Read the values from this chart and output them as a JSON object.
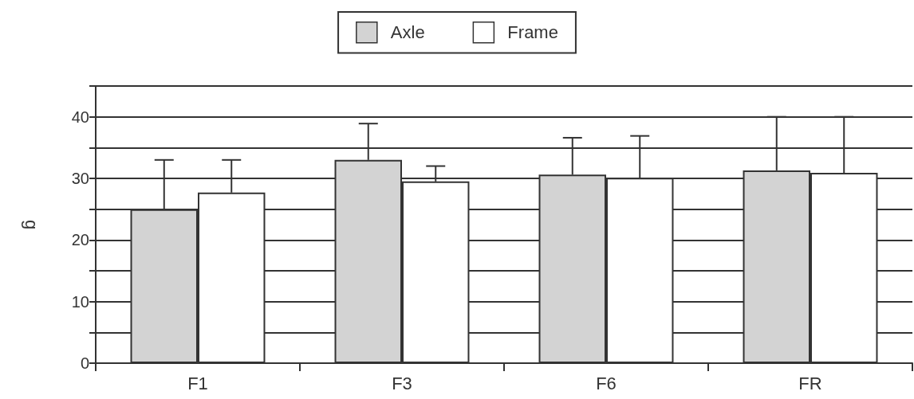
{
  "chart_data": {
    "type": "bar",
    "ylabel": "g",
    "categories": [
      "F1",
      "F3",
      "F6",
      "FR"
    ],
    "series": [
      {
        "name": "Axle",
        "color": "#d3d3d3",
        "values": [
          25,
          33,
          30.6,
          31.3
        ],
        "errors": [
          [
            25,
            33
          ],
          [
            33,
            38.9
          ],
          [
            30.6,
            36.6
          ],
          [
            31.3,
            40
          ]
        ]
      },
      {
        "name": "Frame",
        "color": "#ffffff",
        "values": [
          27.7,
          29.5,
          30.1,
          30.9
        ],
        "errors": [
          [
            27.7,
            33
          ],
          [
            29.5,
            32
          ],
          [
            30.1,
            36.9
          ],
          [
            30.9,
            40
          ]
        ]
      }
    ],
    "ylim": [
      0,
      45
    ],
    "yticks": [
      0,
      {
        "value": 5,
        "label": null
      },
      10,
      {
        "value": 15,
        "label": null
      },
      20,
      {
        "value": 25,
        "label": null
      },
      30,
      {
        "value": 35,
        "label": null
      },
      40,
      {
        "value": 45,
        "label": null
      }
    ],
    "grid": "y",
    "legend": "top"
  }
}
